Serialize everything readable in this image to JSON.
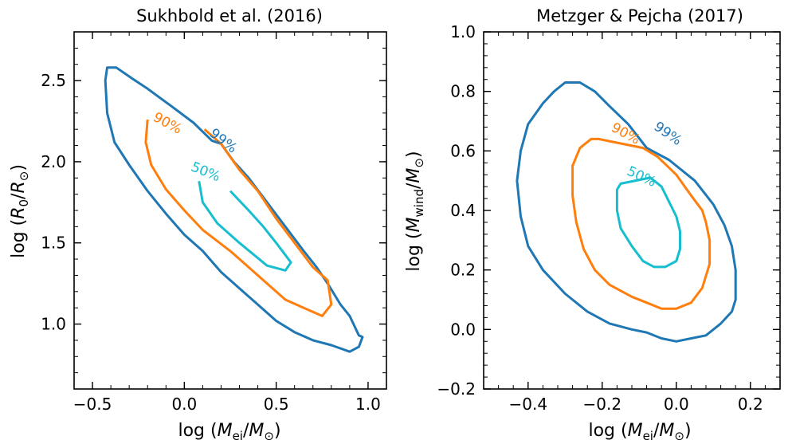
{
  "chart_data": [
    {
      "type": "contour",
      "title": "Sukhbold et al. (2016)",
      "xlabel": "log (M_ej/M_⊙)",
      "ylabel": "log (R_0/R_⊙)",
      "xlim": [
        -0.6,
        1.1
      ],
      "ylim": [
        0.6,
        2.8
      ],
      "xticks": [
        -0.5,
        0.0,
        0.5,
        1.0
      ],
      "xtick_labels": [
        "−0.5",
        "0.0",
        "0.5",
        "1.0"
      ],
      "yticks": [
        1.0,
        1.5,
        2.0,
        2.5
      ],
      "ytick_labels": [
        "1.0",
        "1.5",
        "2.0",
        "2.5"
      ],
      "contours": [
        {
          "label": "99%",
          "color": "#1f77b4",
          "closed": true,
          "points": [
            [
              -0.42,
              2.58
            ],
            [
              -0.37,
              2.58
            ],
            [
              -0.28,
              2.51
            ],
            [
              -0.2,
              2.45
            ],
            [
              -0.08,
              2.35
            ],
            [
              0.05,
              2.24
            ],
            [
              0.15,
              2.13
            ],
            [
              0.2,
              2.11
            ],
            [
              0.27,
              2.0
            ],
            [
              0.35,
              1.9
            ],
            [
              0.45,
              1.75
            ],
            [
              0.55,
              1.6
            ],
            [
              0.65,
              1.45
            ],
            [
              0.72,
              1.35
            ],
            [
              0.78,
              1.25
            ],
            [
              0.85,
              1.12
            ],
            [
              0.9,
              1.05
            ],
            [
              0.95,
              0.93
            ],
            [
              0.97,
              0.92
            ],
            [
              0.95,
              0.86
            ],
            [
              0.9,
              0.83
            ],
            [
              0.8,
              0.87
            ],
            [
              0.7,
              0.9
            ],
            [
              0.6,
              0.95
            ],
            [
              0.5,
              1.02
            ],
            [
              0.4,
              1.12
            ],
            [
              0.3,
              1.22
            ],
            [
              0.2,
              1.32
            ],
            [
              0.1,
              1.45
            ],
            [
              0.0,
              1.55
            ],
            [
              -0.1,
              1.68
            ],
            [
              -0.2,
              1.82
            ],
            [
              -0.3,
              1.98
            ],
            [
              -0.38,
              2.12
            ],
            [
              -0.42,
              2.3
            ],
            [
              -0.43,
              2.5
            ],
            [
              -0.42,
              2.58
            ]
          ]
        },
        {
          "label": "90%",
          "color": "#ff7f0e",
          "closed": false,
          "points": [
            [
              0.11,
              2.2
            ],
            [
              0.2,
              2.11
            ],
            [
              0.3,
              1.95
            ],
            [
              0.4,
              1.82
            ],
            [
              0.5,
              1.65
            ],
            [
              0.6,
              1.5
            ],
            [
              0.7,
              1.35
            ],
            [
              0.78,
              1.27
            ],
            [
              0.8,
              1.12
            ],
            [
              0.75,
              1.05
            ],
            [
              0.65,
              1.1
            ],
            [
              0.55,
              1.15
            ],
            [
              0.45,
              1.25
            ],
            [
              0.35,
              1.35
            ],
            [
              0.25,
              1.45
            ],
            [
              0.1,
              1.58
            ],
            [
              0.0,
              1.7
            ],
            [
              -0.1,
              1.83
            ],
            [
              -0.18,
              1.98
            ],
            [
              -0.21,
              2.12
            ],
            [
              -0.2,
              2.26
            ]
          ]
        },
        {
          "label": "50%",
          "color": "#17becf",
          "closed": false,
          "points": [
            [
              0.08,
              1.88
            ],
            [
              0.1,
              1.75
            ],
            [
              0.18,
              1.62
            ],
            [
              0.3,
              1.5
            ],
            [
              0.45,
              1.36
            ],
            [
              0.55,
              1.33
            ],
            [
              0.58,
              1.38
            ],
            [
              0.5,
              1.5
            ],
            [
              0.43,
              1.6
            ],
            [
              0.35,
              1.7
            ],
            [
              0.25,
              1.82
            ]
          ]
        }
      ]
    },
    {
      "type": "contour",
      "title": "Metzger & Pejcha (2017)",
      "xlabel": "log (M_ej/M_⊙)",
      "ylabel": "log (M_wind/M_⊙)",
      "xlim": [
        -0.52,
        0.28
      ],
      "ylim": [
        -0.2,
        1.0
      ],
      "xticks": [
        -0.4,
        -0.2,
        0.0,
        0.2
      ],
      "xtick_labels": [
        "−0.4",
        "−0.2",
        "0.0",
        "0.2"
      ],
      "yticks": [
        -0.2,
        0.0,
        0.2,
        0.4,
        0.6,
        0.8,
        1.0
      ],
      "ytick_labels": [
        "−0.2",
        "0.0",
        "0.2",
        "0.4",
        "0.6",
        "0.8",
        "1.0"
      ],
      "contours": [
        {
          "label": "99%",
          "color": "#1f77b4",
          "closed": true,
          "points": [
            [
              -0.08,
              0.61
            ],
            [
              -0.02,
              0.57
            ],
            [
              0.05,
              0.5
            ],
            [
              0.1,
              0.42
            ],
            [
              0.13,
              0.35
            ],
            [
              0.15,
              0.28
            ],
            [
              0.16,
              0.2
            ],
            [
              0.16,
              0.1
            ],
            [
              0.15,
              0.06
            ],
            [
              0.12,
              0.02
            ],
            [
              0.08,
              -0.02
            ],
            [
              0.04,
              -0.03
            ],
            [
              0.0,
              -0.04
            ],
            [
              -0.04,
              -0.03
            ],
            [
              -0.08,
              -0.01
            ],
            [
              -0.12,
              0.0
            ],
            [
              -0.18,
              0.02
            ],
            [
              -0.24,
              0.06
            ],
            [
              -0.3,
              0.12
            ],
            [
              -0.36,
              0.2
            ],
            [
              -0.4,
              0.28
            ],
            [
              -0.42,
              0.38
            ],
            [
              -0.43,
              0.5
            ],
            [
              -0.42,
              0.6
            ],
            [
              -0.4,
              0.69
            ],
            [
              -0.36,
              0.76
            ],
            [
              -0.33,
              0.8
            ],
            [
              -0.3,
              0.83
            ],
            [
              -0.26,
              0.83
            ],
            [
              -0.22,
              0.8
            ],
            [
              -0.18,
              0.75
            ],
            [
              -0.13,
              0.69
            ]
          ]
        },
        {
          "label": "90%",
          "color": "#ff7f0e",
          "closed": true,
          "points": [
            [
              -0.09,
              0.61
            ],
            [
              -0.05,
              0.58
            ],
            [
              0.0,
              0.52
            ],
            [
              0.04,
              0.45
            ],
            [
              0.07,
              0.4
            ],
            [
              0.08,
              0.36
            ],
            [
              0.09,
              0.3
            ],
            [
              0.09,
              0.22
            ],
            [
              0.07,
              0.14
            ],
            [
              0.04,
              0.09
            ],
            [
              0.0,
              0.07
            ],
            [
              -0.04,
              0.07
            ],
            [
              -0.08,
              0.09
            ],
            [
              -0.12,
              0.11
            ],
            [
              -0.18,
              0.15
            ],
            [
              -0.22,
              0.2
            ],
            [
              -0.25,
              0.27
            ],
            [
              -0.27,
              0.36
            ],
            [
              -0.28,
              0.45
            ],
            [
              -0.28,
              0.55
            ],
            [
              -0.26,
              0.61
            ],
            [
              -0.23,
              0.64
            ],
            [
              -0.21,
              0.64
            ]
          ]
        },
        {
          "label": "50%",
          "color": "#17becf",
          "closed": true,
          "points": [
            [
              -0.07,
              0.51
            ],
            [
              -0.04,
              0.48
            ],
            [
              -0.02,
              0.43
            ],
            [
              0.0,
              0.38
            ],
            [
              0.01,
              0.33
            ],
            [
              0.01,
              0.27
            ],
            [
              0.0,
              0.23
            ],
            [
              -0.03,
              0.21
            ],
            [
              -0.06,
              0.21
            ],
            [
              -0.09,
              0.23
            ],
            [
              -0.12,
              0.28
            ],
            [
              -0.15,
              0.34
            ],
            [
              -0.16,
              0.4
            ],
            [
              -0.16,
              0.47
            ],
            [
              -0.15,
              0.49
            ]
          ]
        }
      ]
    }
  ]
}
